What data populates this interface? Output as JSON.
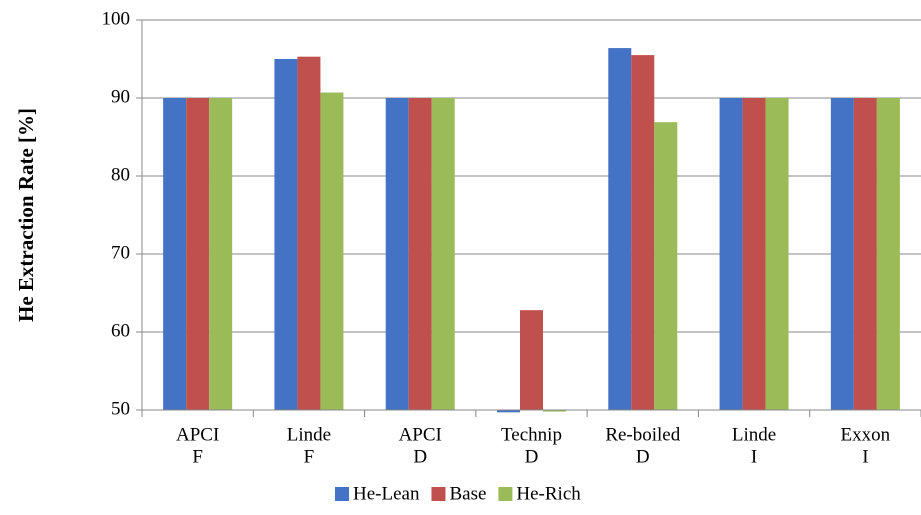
{
  "chart_data": {
    "type": "bar",
    "y_label": "He Extraction Rate [%]",
    "categories": [
      [
        "APCI",
        "F"
      ],
      [
        "Linde",
        "F"
      ],
      [
        "APCI",
        "D"
      ],
      [
        "Technip",
        "D"
      ],
      [
        "Re-boiled",
        "D"
      ],
      [
        "Linde",
        "I"
      ],
      [
        "Exxon",
        "I"
      ]
    ],
    "series": [
      {
        "name": "He-Lean",
        "color": "#4472c4",
        "values": [
          90,
          95,
          90,
          49.7,
          96.4,
          90,
          90
        ]
      },
      {
        "name": "Base",
        "color": "#c0504d",
        "values": [
          90,
          95.3,
          90,
          62.8,
          95.5,
          90,
          90
        ]
      },
      {
        "name": "He-Rich",
        "color": "#9bbb59",
        "values": [
          90,
          90.7,
          90,
          49.8,
          86.9,
          90,
          90
        ]
      }
    ],
    "ylim": [
      50,
      100
    ],
    "yticks": [
      50,
      60,
      70,
      80,
      90,
      100
    ],
    "grid": true,
    "legend": "bottom"
  }
}
